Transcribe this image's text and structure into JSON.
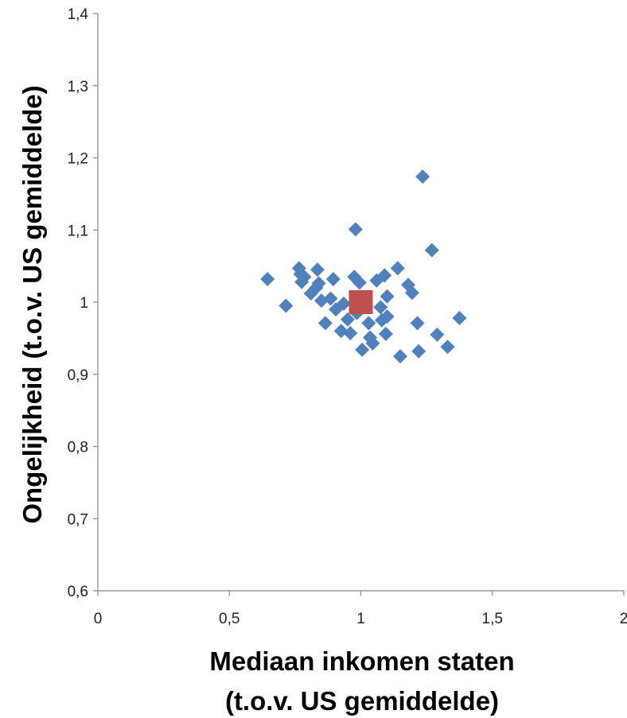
{
  "chart_data": {
    "type": "scatter",
    "xlabel_lines": [
      "Mediaan inkomen staten",
      "(t.o.v. US gemiddelde)"
    ],
    "ylabel": "Ongelijkheid (t.o.v. US gemiddelde)",
    "xlim": [
      0,
      2
    ],
    "ylim": [
      0.6,
      1.4
    ],
    "x_ticks": [
      0,
      0.5,
      1,
      1.5,
      2
    ],
    "x_tick_labels": [
      "0",
      "0,5",
      "1",
      "1,5",
      "2"
    ],
    "y_ticks": [
      0.6,
      0.7,
      0.8,
      0.9,
      1.0,
      1.1,
      1.2,
      1.3,
      1.4
    ],
    "y_tick_labels": [
      "0,6",
      "0,7",
      "0,8",
      "0,9",
      "1",
      "1,1",
      "1,2",
      "1,3",
      "1,4"
    ],
    "grid": false,
    "legend": "none",
    "series": [
      {
        "marker": "diamond",
        "color": "#4F81BD",
        "points": [
          [
            0.645,
            1.032
          ],
          [
            0.715,
            0.995
          ],
          [
            0.765,
            1.047
          ],
          [
            0.77,
            1.039
          ],
          [
            0.775,
            1.028
          ],
          [
            0.785,
            1.035
          ],
          [
            0.81,
            1.012
          ],
          [
            0.83,
            1.02
          ],
          [
            0.835,
            1.045
          ],
          [
            0.84,
            1.026
          ],
          [
            0.85,
            1.002
          ],
          [
            0.865,
            0.971
          ],
          [
            0.885,
            1.005
          ],
          [
            0.895,
            1.032
          ],
          [
            0.905,
            0.99
          ],
          [
            0.925,
            0.96
          ],
          [
            0.935,
            0.998
          ],
          [
            0.95,
            0.976
          ],
          [
            0.96,
            0.957
          ],
          [
            0.975,
            1.035
          ],
          [
            0.98,
            1.101
          ],
          [
            0.985,
            0.985
          ],
          [
            0.995,
            1.027
          ],
          [
            1.005,
            0.934
          ],
          [
            1.015,
            1.006
          ],
          [
            1.03,
            0.971
          ],
          [
            1.035,
            0.951
          ],
          [
            1.045,
            0.943
          ],
          [
            1.06,
            1.03
          ],
          [
            1.075,
            0.993
          ],
          [
            1.08,
            0.975
          ],
          [
            1.09,
            1.037
          ],
          [
            1.095,
            0.956
          ],
          [
            1.1,
            0.98
          ],
          [
            1.1,
            1.008
          ],
          [
            1.14,
            1.047
          ],
          [
            1.15,
            0.925
          ],
          [
            1.18,
            1.024
          ],
          [
            1.195,
            1.013
          ],
          [
            1.215,
            0.971
          ],
          [
            1.22,
            0.932
          ],
          [
            1.235,
            1.174
          ],
          [
            1.27,
            1.072
          ],
          [
            1.29,
            0.955
          ],
          [
            1.33,
            0.938
          ],
          [
            1.375,
            0.978
          ]
        ]
      },
      {
        "marker": "square",
        "color": "#C0504D",
        "points": [
          [
            1.0,
            1.0
          ]
        ]
      }
    ]
  }
}
